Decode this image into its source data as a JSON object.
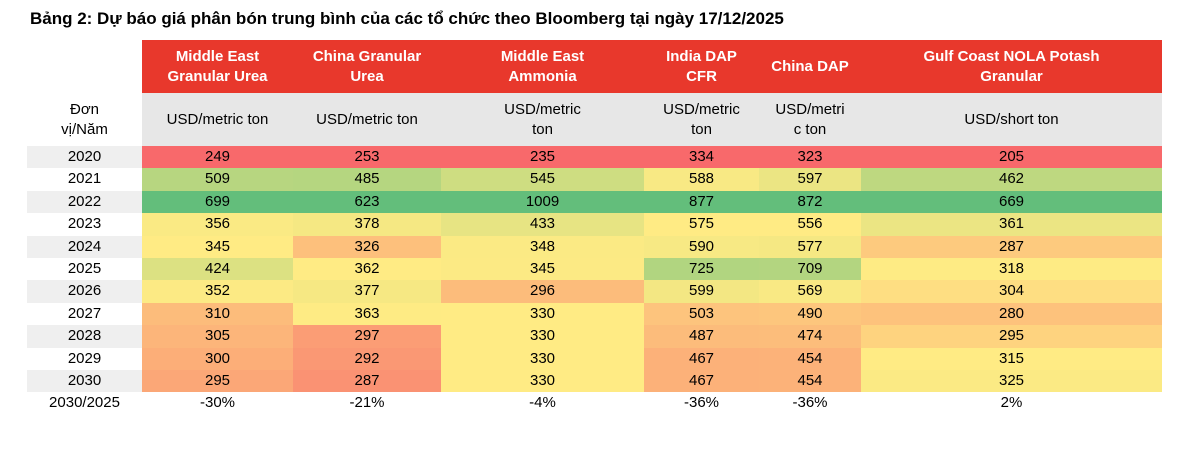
{
  "title": "Bảng 2: Dự báo giá phân bón trung bình của các tổ chức theo Bloomberg tại ngày 17/12/2025",
  "colors": {
    "header_bg": "#E8382C",
    "header_text": "#FFFFFF",
    "units_bg": "#E7E7E7",
    "row_label_alt_bg": "#EFEFEF",
    "scale_min": "#F8696B",
    "scale_mid": "#FFEB84",
    "scale_max": "#63BE7B"
  },
  "table": {
    "corner_label": "Đơn\nvị/Năm",
    "columns": [
      {
        "name": "Middle East\nGranular Urea",
        "unit": "USD/metric ton"
      },
      {
        "name": "China Granular\nUrea",
        "unit": "USD/metric ton"
      },
      {
        "name": "Middle East\nAmmonia",
        "unit": "USD/metric\nton"
      },
      {
        "name": "India DAP\nCFR",
        "unit": "USD/metric\nton"
      },
      {
        "name": "China DAP",
        "unit": "USD/metri\nc ton"
      },
      {
        "name": "Gulf Coast NOLA Potash\nGranular",
        "unit": "USD/short ton"
      }
    ],
    "rows": [
      {
        "year": "2020",
        "label_bg": "#EFEFEF",
        "cells": [
          {
            "value": "249",
            "bg": "#F8696B"
          },
          {
            "value": "253",
            "bg": "#F8696B"
          },
          {
            "value": "235",
            "bg": "#F8696B"
          },
          {
            "value": "334",
            "bg": "#F8696B"
          },
          {
            "value": "323",
            "bg": "#F8696B"
          },
          {
            "value": "205",
            "bg": "#F8696B"
          }
        ]
      },
      {
        "year": "2021",
        "label_bg": "#FFFFFF",
        "cells": [
          {
            "value": "509",
            "bg": "#B7D680"
          },
          {
            "value": "485",
            "bg": "#B5D680"
          },
          {
            "value": "545",
            "bg": "#CEDD81"
          },
          {
            "value": "588",
            "bg": "#F8E984"
          },
          {
            "value": "597",
            "bg": "#EBE583"
          },
          {
            "value": "462",
            "bg": "#BED880"
          }
        ]
      },
      {
        "year": "2022",
        "label_bg": "#EFEFEF",
        "cells": [
          {
            "value": "699",
            "bg": "#63BE7B"
          },
          {
            "value": "623",
            "bg": "#63BE7B"
          },
          {
            "value": "1009",
            "bg": "#63BE7B"
          },
          {
            "value": "877",
            "bg": "#63BE7B"
          },
          {
            "value": "872",
            "bg": "#63BE7B"
          },
          {
            "value": "669",
            "bg": "#63BE7B"
          }
        ]
      },
      {
        "year": "2023",
        "label_bg": "#FFFFFF",
        "cells": [
          {
            "value": "356",
            "bg": "#FAEA84"
          },
          {
            "value": "378",
            "bg": "#F5E883"
          },
          {
            "value": "433",
            "bg": "#E7E483"
          },
          {
            "value": "575",
            "bg": "#FFEB84"
          },
          {
            "value": "556",
            "bg": "#FFEB84"
          },
          {
            "value": "361",
            "bg": "#EBE583"
          }
        ]
      },
      {
        "year": "2024",
        "label_bg": "#EFEFEF",
        "cells": [
          {
            "value": "345",
            "bg": "#FFEB84"
          },
          {
            "value": "326",
            "bg": "#FDC07C"
          },
          {
            "value": "348",
            "bg": "#FBEA84"
          },
          {
            "value": "590",
            "bg": "#F7E984"
          },
          {
            "value": "577",
            "bg": "#F5E883"
          },
          {
            "value": "287",
            "bg": "#FDCA7E"
          }
        ]
      },
      {
        "year": "2025",
        "label_bg": "#FFFFFF",
        "cells": [
          {
            "value": "424",
            "bg": "#DCE182"
          },
          {
            "value": "362",
            "bg": "#FFEB84"
          },
          {
            "value": "345",
            "bg": "#FCEA84"
          },
          {
            "value": "725",
            "bg": "#B1D580"
          },
          {
            "value": "709",
            "bg": "#B3D580"
          },
          {
            "value": "318",
            "bg": "#FEEB84"
          }
        ]
      },
      {
        "year": "2026",
        "label_bg": "#EFEFEF",
        "cells": [
          {
            "value": "352",
            "bg": "#FCEA84"
          },
          {
            "value": "377",
            "bg": "#F6E883"
          },
          {
            "value": "296",
            "bg": "#FCBC7B"
          },
          {
            "value": "599",
            "bg": "#F3E783"
          },
          {
            "value": "569",
            "bg": "#F9E984"
          },
          {
            "value": "304",
            "bg": "#FEDE82"
          }
        ]
      },
      {
        "year": "2027",
        "label_bg": "#FFFFFF",
        "cells": [
          {
            "value": "310",
            "bg": "#FCBC7B"
          },
          {
            "value": "363",
            "bg": "#FEEB84"
          },
          {
            "value": "330",
            "bg": "#FFEB84"
          },
          {
            "value": "503",
            "bg": "#FDC47D"
          },
          {
            "value": "490",
            "bg": "#FDC67D"
          },
          {
            "value": "280",
            "bg": "#FDC27C"
          }
        ]
      },
      {
        "year": "2028",
        "label_bg": "#EFEFEF",
        "cells": [
          {
            "value": "305",
            "bg": "#FCB57A"
          },
          {
            "value": "297",
            "bg": "#FB9D75"
          },
          {
            "value": "330",
            "bg": "#FFEB84"
          },
          {
            "value": "487",
            "bg": "#FCBC7B"
          },
          {
            "value": "474",
            "bg": "#FCBD7B"
          },
          {
            "value": "295",
            "bg": "#FED37F"
          }
        ]
      },
      {
        "year": "2029",
        "label_bg": "#FFFFFF",
        "cells": [
          {
            "value": "300",
            "bg": "#FCAE78"
          },
          {
            "value": "292",
            "bg": "#FA9874"
          },
          {
            "value": "330",
            "bg": "#FFEB84"
          },
          {
            "value": "467",
            "bg": "#FCB179"
          },
          {
            "value": "454",
            "bg": "#FCB279"
          },
          {
            "value": "315",
            "bg": "#FFEB84"
          }
        ]
      },
      {
        "year": "2030",
        "label_bg": "#EFEFEF",
        "cells": [
          {
            "value": "295",
            "bg": "#FBA777"
          },
          {
            "value": "287",
            "bg": "#FA9273"
          },
          {
            "value": "330",
            "bg": "#FFEB84"
          },
          {
            "value": "467",
            "bg": "#FCB179"
          },
          {
            "value": "454",
            "bg": "#FCB279"
          },
          {
            "value": "325",
            "bg": "#FBEA84"
          }
        ]
      },
      {
        "year": "2030/2025",
        "label_bg": "#FFFFFF",
        "cells": [
          {
            "value": "-30%",
            "bg": null
          },
          {
            "value": "-21%",
            "bg": null
          },
          {
            "value": "-4%",
            "bg": null
          },
          {
            "value": "-36%",
            "bg": null
          },
          {
            "value": "-36%",
            "bg": null
          },
          {
            "value": "2%",
            "bg": null
          }
        ]
      }
    ]
  }
}
